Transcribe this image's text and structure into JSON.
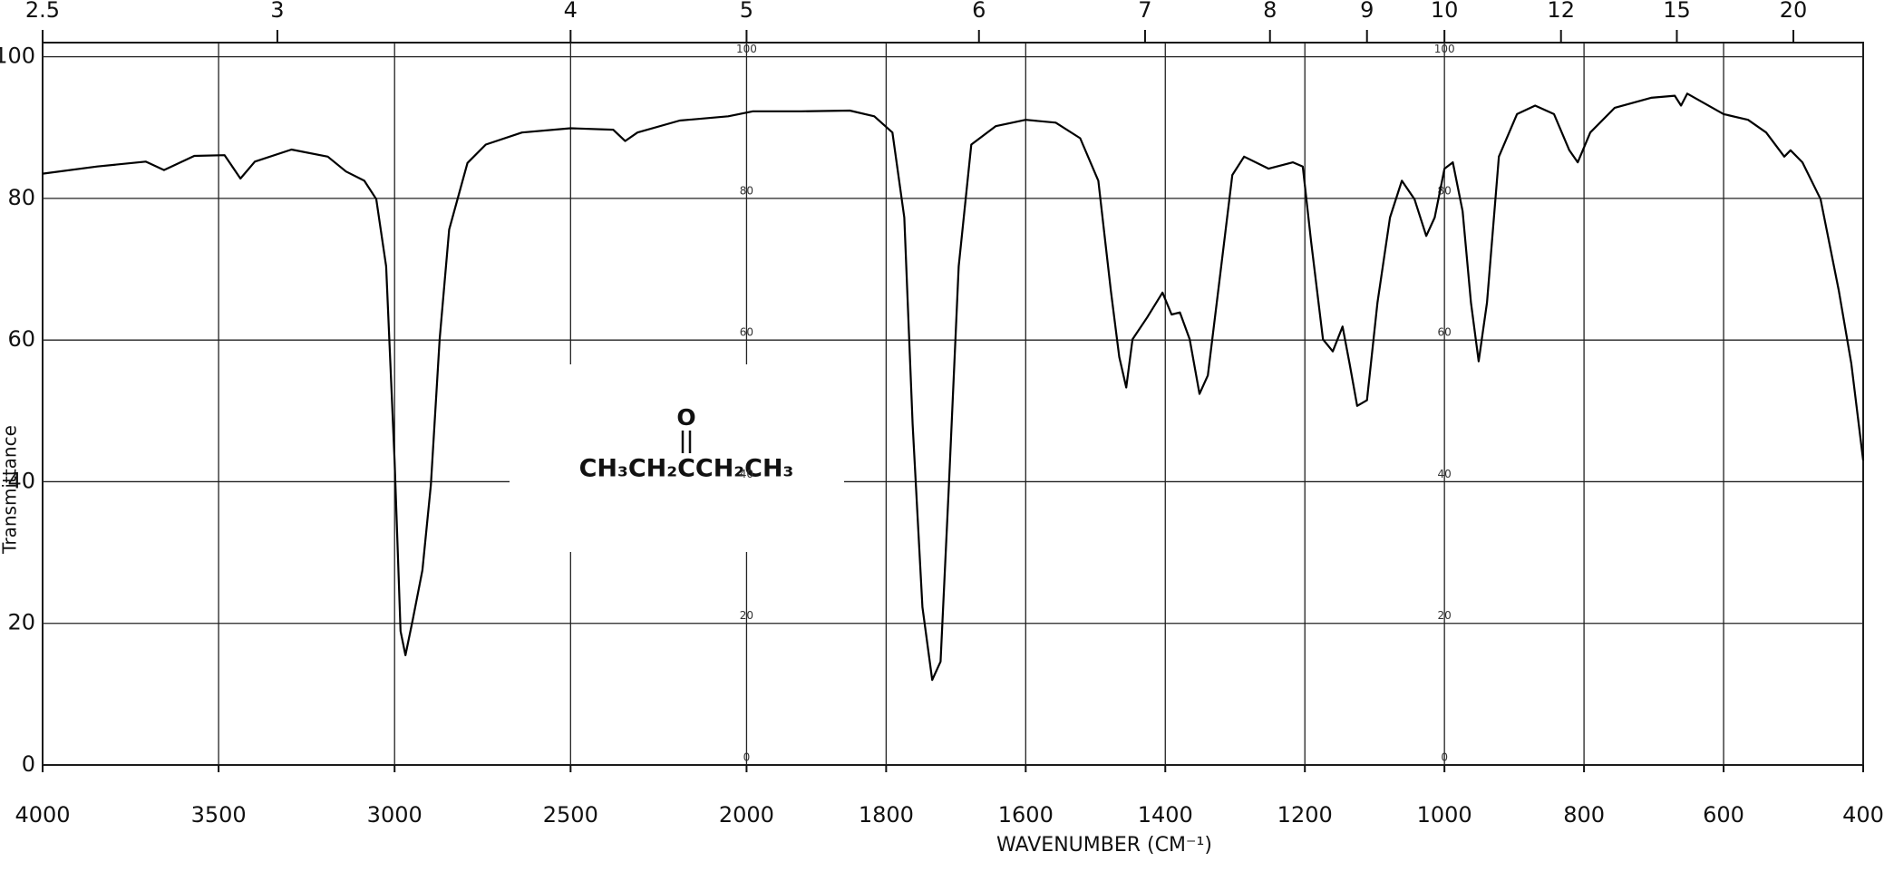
{
  "chart_data": {
    "type": "line",
    "x_label": "WAVENUMBER (CM⁻¹)",
    "y_label": "Transmittance",
    "color": "#000000",
    "grid": true,
    "xlim": [
      4000,
      400
    ],
    "ylim": [
      0,
      102
    ],
    "xticks": [
      4000,
      3500,
      3000,
      2500,
      2000,
      1800,
      1600,
      1400,
      1200,
      1000,
      800,
      600,
      400
    ],
    "x2ticks": [
      {
        "value": 4000,
        "label": "2.5"
      },
      {
        "value": 3333,
        "label": "3"
      },
      {
        "value": 2500,
        "label": "4"
      },
      {
        "value": 2000,
        "label": "5"
      },
      {
        "value": 1667,
        "label": "6"
      },
      {
        "value": 1429,
        "label": "7"
      },
      {
        "value": 1250,
        "label": "8"
      },
      {
        "value": 1111,
        "label": "9"
      },
      {
        "value": 1000,
        "label": "10"
      },
      {
        "value": 833,
        "label": "12"
      },
      {
        "value": 667,
        "label": "15"
      },
      {
        "value": 500,
        "label": "20"
      }
    ],
    "yticks": [
      0,
      20,
      40,
      60,
      80,
      100
    ],
    "annotation": {
      "carbonyl": "O",
      "formula": "CH₃CH₂CCH₂CH₃"
    },
    "x": [
      4000,
      3845,
      3707,
      3655,
      3569,
      3483,
      3438,
      3397,
      3293,
      3190,
      3138,
      3086,
      3052,
      3024,
      3000,
      2983,
      2969,
      2948,
      2921,
      2897,
      2872,
      2845,
      2793,
      2741,
      2638,
      2500,
      2379,
      2345,
      2310,
      2190,
      2052,
      1991,
      1922,
      1852,
      1817,
      1791,
      1774,
      1762,
      1748,
      1734,
      1722,
      1710,
      1696,
      1678,
      1643,
      1600,
      1557,
      1522,
      1496,
      1478,
      1466,
      1456,
      1447,
      1426,
      1404,
      1391,
      1379,
      1365,
      1351,
      1339,
      1322,
      1304,
      1287,
      1252,
      1217,
      1203,
      1191,
      1174,
      1160,
      1146,
      1136,
      1125,
      1111,
      1096,
      1078,
      1061,
      1043,
      1026,
      1014,
      1000,
      988,
      974,
      962,
      951,
      939,
      922,
      896,
      870,
      843,
      821,
      809,
      791,
      756,
      704,
      670,
      661,
      652,
      600,
      565,
      539,
      513,
      504,
      487,
      461,
      435,
      417,
      400
    ],
    "values": [
      83.5,
      84.5,
      85.2,
      84,
      86,
      86.1,
      82.8,
      85.2,
      86.9,
      85.9,
      83.8,
      82.5,
      79.9,
      70.4,
      43,
      18.9,
      15.5,
      20.6,
      27.5,
      39.5,
      60.1,
      75.6,
      85,
      87.6,
      89.3,
      89.9,
      89.7,
      88.1,
      89.3,
      91,
      91.6,
      92.3,
      92.3,
      92.4,
      91.6,
      89.3,
      77.3,
      48.1,
      22.3,
      12,
      14.6,
      39.5,
      70.4,
      87.6,
      90.2,
      91.1,
      90.7,
      88.5,
      82.5,
      67,
      57.6,
      53.3,
      60.1,
      63.2,
      66.7,
      63.6,
      63.9,
      60.1,
      52.4,
      55,
      68.7,
      83.3,
      85.9,
      84.2,
      85.1,
      84.5,
      73.9,
      60.1,
      58.4,
      61.9,
      56.7,
      50.7,
      51.5,
      65.3,
      77.3,
      82.5,
      79.9,
      74.7,
      77.3,
      84.2,
      85.1,
      78.2,
      65.3,
      57,
      65.3,
      85.9,
      91.9,
      93.1,
      91.9,
      86.8,
      85.1,
      89.3,
      92.8,
      94.2,
      94.5,
      93.1,
      94.8,
      91.9,
      91.1,
      89.3,
      85.9,
      86.8,
      85.1,
      79.9,
      67,
      56.7,
      43
    ]
  }
}
